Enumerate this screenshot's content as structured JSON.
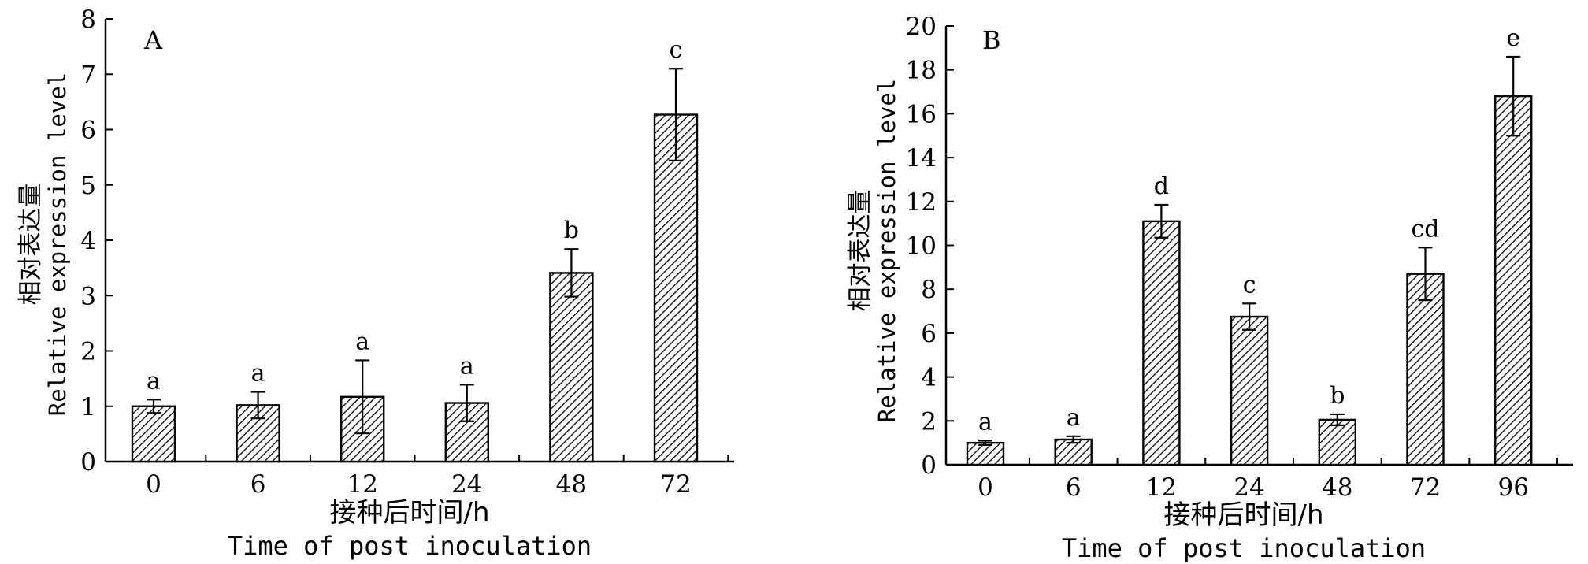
{
  "chart_data": [
    {
      "type": "bar",
      "panel": "A",
      "categories": [
        "0",
        "6",
        "12",
        "24",
        "48",
        "72"
      ],
      "values": [
        1.0,
        1.02,
        1.17,
        1.06,
        3.41,
        6.27
      ],
      "errors": [
        0.12,
        0.24,
        0.66,
        0.33,
        0.43,
        0.83
      ],
      "significance": [
        "a",
        "a",
        "a",
        "a",
        "b",
        "c"
      ],
      "ylim": [
        0,
        8
      ],
      "yticks": [
        0,
        1,
        2,
        3,
        4,
        5,
        6,
        7,
        8
      ],
      "xlabel_cn": "接种后时间/h",
      "xlabel_en": "Time of post inoculation",
      "ylabel_cn": "相对表达量",
      "ylabel_en": "Relative expression level",
      "bar_pattern": "diagonal-hatch"
    },
    {
      "type": "bar",
      "panel": "B",
      "categories": [
        "0",
        "6",
        "12",
        "24",
        "48",
        "72",
        "96"
      ],
      "values": [
        1.0,
        1.15,
        11.1,
        6.75,
        2.05,
        8.7,
        16.8
      ],
      "errors": [
        0.1,
        0.15,
        0.75,
        0.6,
        0.25,
        1.2,
        1.8
      ],
      "significance": [
        "a",
        "a",
        "d",
        "c",
        "b",
        "cd",
        "e"
      ],
      "ylim": [
        0,
        20
      ],
      "yticks": [
        0,
        2,
        4,
        6,
        8,
        10,
        12,
        14,
        16,
        18,
        20
      ],
      "xlabel_cn": "接种后时间/h",
      "xlabel_en": "Time of post inoculation",
      "ylabel_cn": "相对表达量",
      "ylabel_en": "Relative expression level",
      "bar_pattern": "diagonal-hatch"
    }
  ]
}
